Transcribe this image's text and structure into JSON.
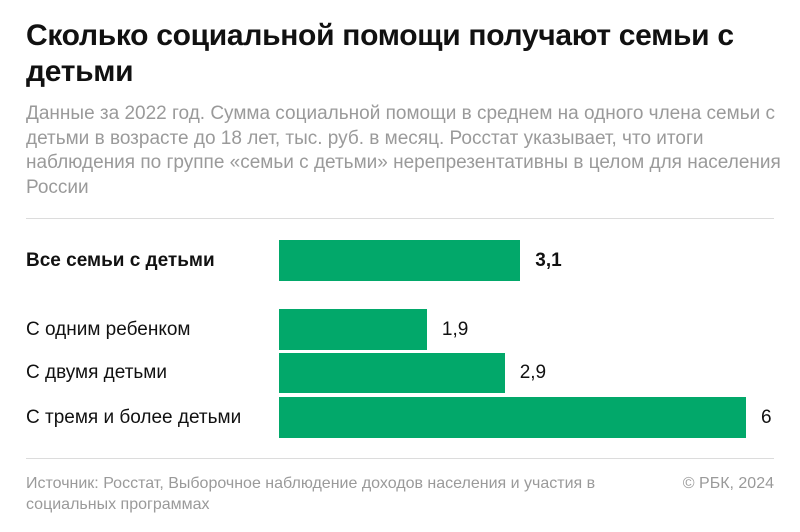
{
  "title": "Сколько социальной помощи получают семьи с детьми",
  "subtitle": "Данные за 2022 год. Сумма социальной помощи в среднем на одного члена семьи с детьми в возрасте до 18 лет, тыс. руб. в месяц. Росстат указывает, что итоги наблюдения по группе «семьи с детьми» нерепрезентативны в целом для населения России",
  "chart_data": {
    "type": "bar",
    "orientation": "horizontal",
    "categories": [
      "Все семьи с детьми",
      "С одним ребенком",
      "С двумя детьми",
      "С тремя и более детьми"
    ],
    "values": [
      3.1,
      1.9,
      2.9,
      6
    ],
    "value_labels": [
      "3,1",
      "1,9",
      "2,9",
      "6"
    ],
    "bar_color": "#02A86A",
    "xlim": [
      0,
      6
    ],
    "grid": false
  },
  "footer": {
    "source": "Источник: Росстат, Выборочное наблюдение доходов населения и участия в социальных программах",
    "copyright": "© РБК, 2024"
  }
}
